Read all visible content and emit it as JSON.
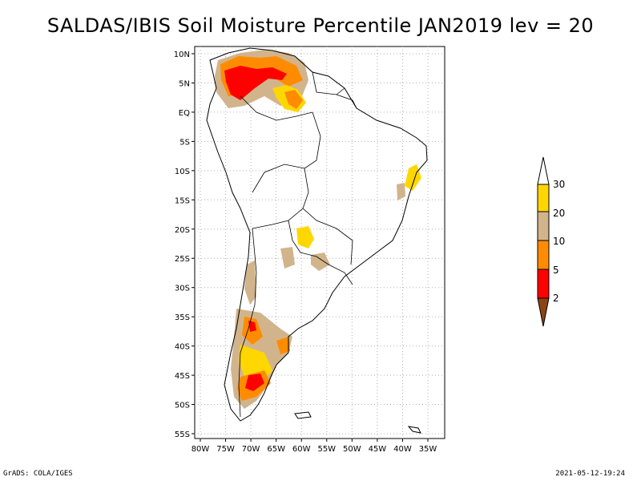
{
  "title": "SALDAS/IBIS Soil Moisture Percentile JAN2019 lev = 20",
  "footer": {
    "left": "GrADS: COLA/IGES",
    "right": "2021-05-12-19:24"
  },
  "map": {
    "lat_ticks": [
      "10N",
      "5N",
      "EQ",
      "5S",
      "10S",
      "15S",
      "20S",
      "25S",
      "30S",
      "35S",
      "40S",
      "45S",
      "50S",
      "55S"
    ],
    "lon_ticks": [
      "80W",
      "75W",
      "70W",
      "65W",
      "60W",
      "55W",
      "50W",
      "45W",
      "40W",
      "35W"
    ],
    "lat_range": [
      -56,
      11
    ],
    "lon_range": [
      -81,
      -33
    ],
    "grid": true
  },
  "colorbar": {
    "levels": [
      "2",
      "5",
      "10",
      "20",
      "30"
    ],
    "colors": [
      "#8b4513",
      "#ff0000",
      "#ff8c00",
      "#d2b48c",
      "#ffd700",
      "#ffffff"
    ]
  },
  "colors": {
    "dry_low": "#ff0000",
    "dry_mid": "#ff8c00",
    "tan": "#d2b48c",
    "gold": "#ffd700",
    "coast": "#000000"
  }
}
